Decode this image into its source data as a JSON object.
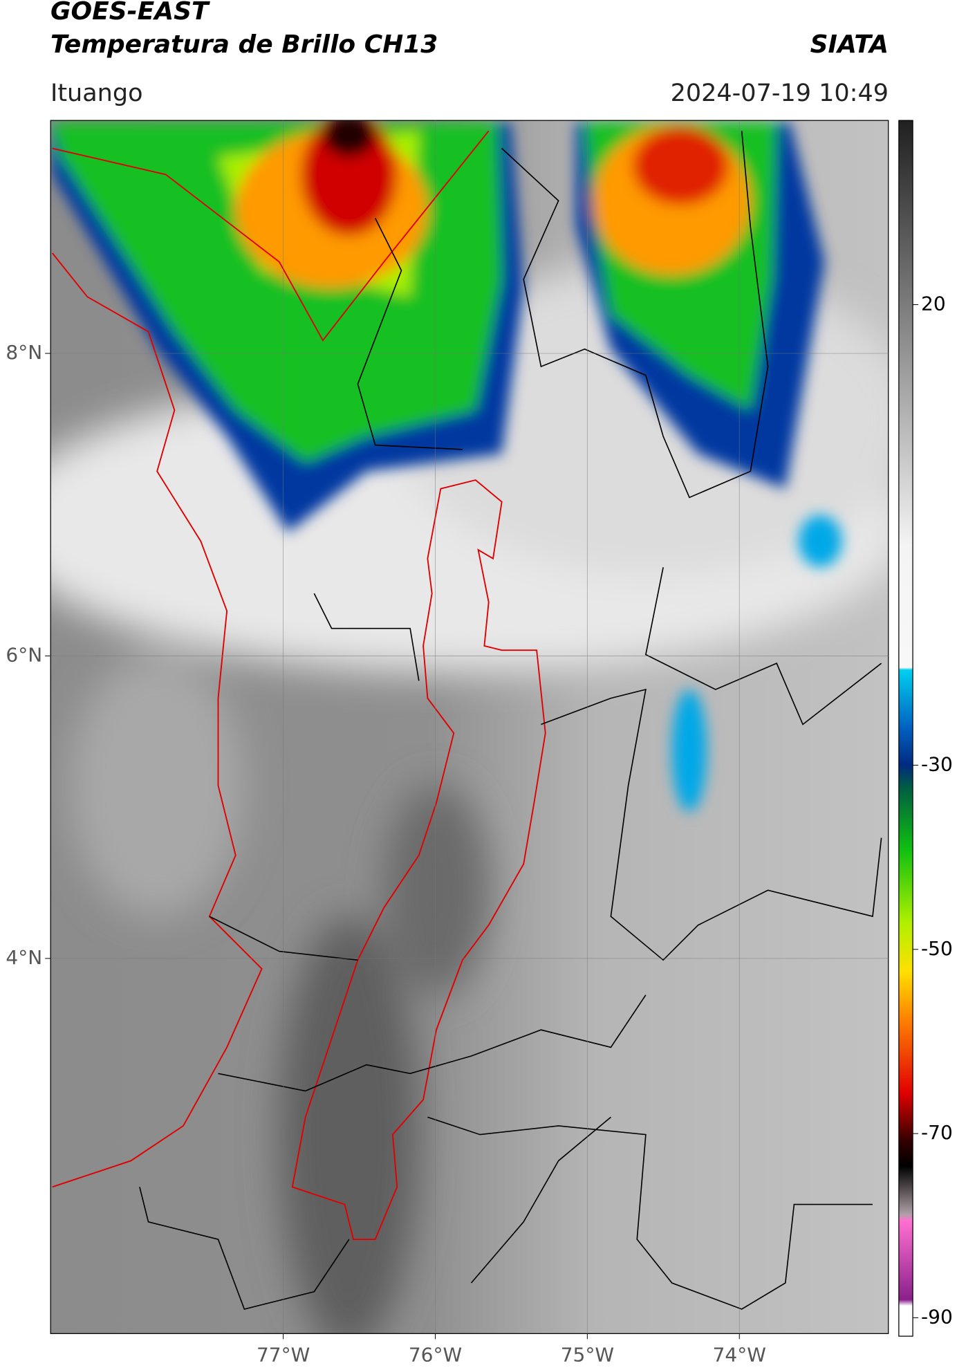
{
  "chart_data": {
    "type": "map",
    "title": "GOES-EAST",
    "subtitle": "Temperatura de Brillo CH13",
    "source": "SIATA",
    "region": "Ituango",
    "datetime": "2024-07-19 10:49",
    "xlim": [
      -78.53,
      -73.02
    ],
    "ylim": [
      1.52,
      9.54
    ],
    "xticks": [
      {
        "value": -77,
        "label": "77°W"
      },
      {
        "value": -76,
        "label": "76°W"
      },
      {
        "value": -75,
        "label": "75°W"
      },
      {
        "value": -74,
        "label": "74°W"
      }
    ],
    "yticks": [
      {
        "value": 8,
        "label": "8°N"
      },
      {
        "value": 6,
        "label": "6°N"
      },
      {
        "value": 4,
        "label": "4°N"
      }
    ],
    "grid": true,
    "clim": [
      40,
      -92
    ],
    "cticks": [
      20,
      -30,
      -50,
      -70,
      -90
    ]
  }
}
